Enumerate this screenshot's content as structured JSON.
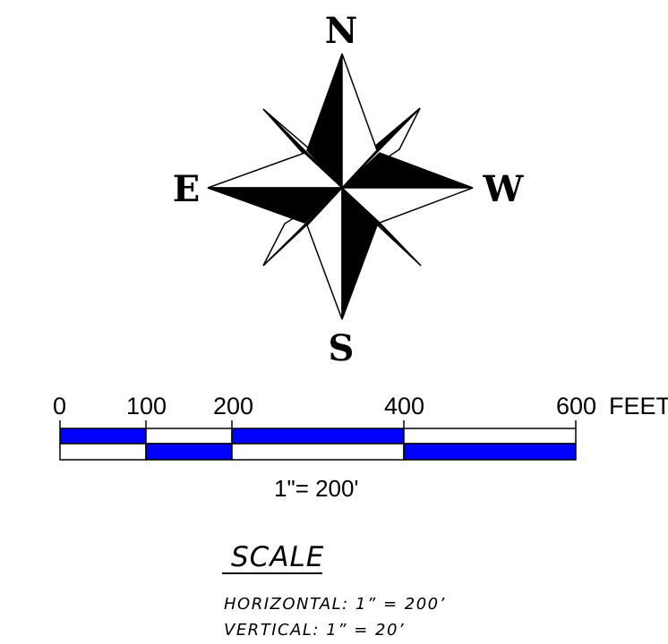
{
  "compass": {
    "north": "N",
    "south": "S",
    "east": "E",
    "west": "W"
  },
  "scale_bar": {
    "ticks": [
      "0",
      "100",
      "200",
      "400",
      "600"
    ],
    "unit": "FEET",
    "ratio": "1\"= 200'",
    "fill_color": "#0000ff"
  },
  "scale_note": {
    "title": "SCALE",
    "horizontal": "HORIZONTAL:  1”  =  200’",
    "vertical": "VERTICAL:  1”  =  20’"
  }
}
